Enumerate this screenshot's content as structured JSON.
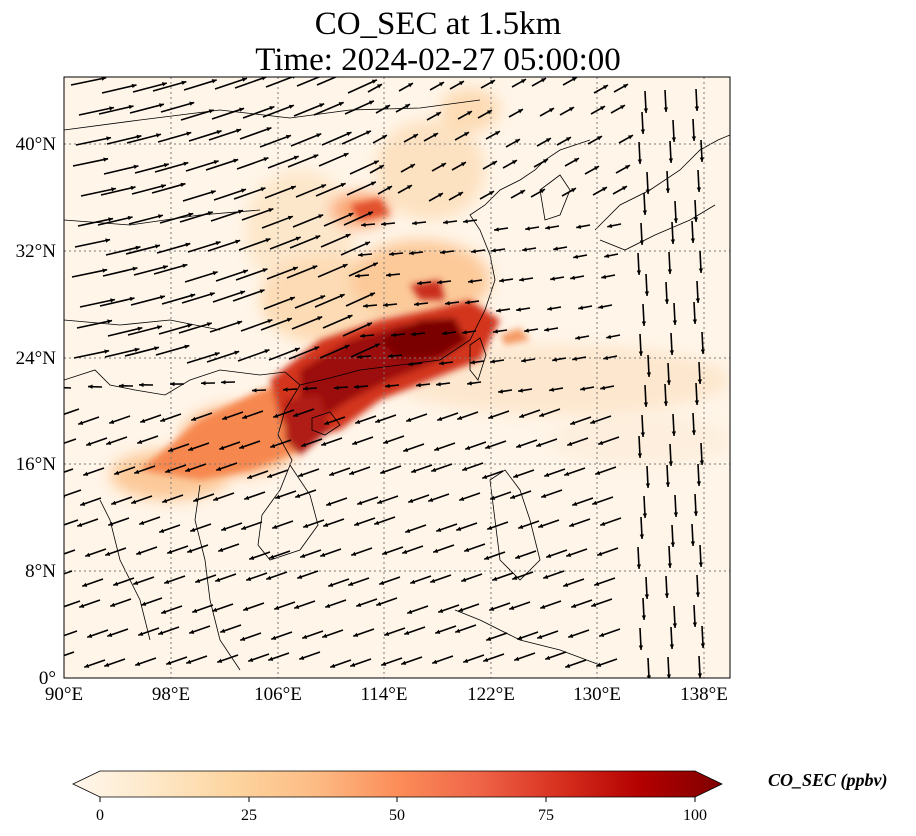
{
  "title": {
    "line1": "CO_SEC at 1.5km",
    "line2": "Time: 2024-02-27 05:00:00"
  },
  "axes": {
    "x_ticks": [
      "90°E",
      "98°E",
      "106°E",
      "114°E",
      "122°E",
      "130°E",
      "138°E"
    ],
    "x_values": [
      90,
      98,
      106,
      114,
      122,
      130,
      138
    ],
    "y_ticks": [
      "0°",
      "8°N",
      "16°N",
      "24°N",
      "32°N",
      "40°N"
    ],
    "y_values": [
      0,
      8,
      16,
      24,
      32,
      40
    ],
    "lon_range": [
      90,
      140
    ],
    "lat_range": [
      0,
      45
    ],
    "gridlines": "dotted"
  },
  "colorbar": {
    "label": "CO_SEC (ppbv)",
    "ticks": [
      "0",
      "25",
      "50",
      "75",
      "100"
    ],
    "tick_values": [
      0,
      25,
      50,
      75,
      100
    ],
    "range": [
      0,
      100
    ],
    "extend": "both",
    "colormap": [
      "#fff7ec",
      "#fee8c8",
      "#fdd49e",
      "#fdbb84",
      "#fc8d59",
      "#ef6548",
      "#d7301f",
      "#b30000",
      "#7f0000"
    ]
  },
  "colors": {
    "background_field": "#fff5e8",
    "coastline": "#000000",
    "grid": "#7a7a7a",
    "arrows": "#000000"
  }
}
